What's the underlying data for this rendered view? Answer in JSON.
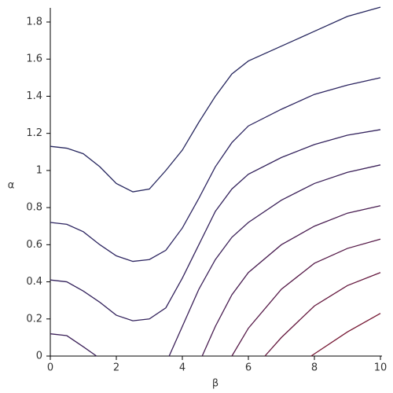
{
  "chart_data": {
    "type": "line",
    "xlabel": "β",
    "ylabel": "α",
    "xlim": [
      0,
      10
    ],
    "ylim": [
      0,
      1.8
    ],
    "xticks": [
      0,
      2,
      4,
      6,
      8,
      10
    ],
    "yticks": [
      0,
      0.2,
      0.4,
      0.6,
      0.8,
      1,
      1.2,
      1.4,
      1.6,
      1.8
    ],
    "series": [
      {
        "color": "#26265e",
        "x": [
          0,
          0.5,
          1,
          1.5,
          2,
          2.5,
          3,
          3.5,
          4,
          4.5,
          5,
          5.5,
          6,
          7,
          8,
          9,
          10
        ],
        "values": [
          1.13,
          1.12,
          1.09,
          1.02,
          0.93,
          0.885,
          0.9,
          1.0,
          1.11,
          1.26,
          1.4,
          1.52,
          1.59,
          1.67,
          1.75,
          1.83,
          1.88
        ]
      },
      {
        "color": "#2c2460",
        "x": [
          0,
          0.5,
          1,
          1.5,
          2,
          2.5,
          3,
          3.5,
          4,
          4.5,
          5,
          5.5,
          6,
          7,
          8,
          9,
          10
        ],
        "values": [
          0.72,
          0.71,
          0.67,
          0.6,
          0.54,
          0.51,
          0.52,
          0.57,
          0.69,
          0.85,
          1.02,
          1.15,
          1.24,
          1.33,
          1.41,
          1.46,
          1.5
        ]
      },
      {
        "color": "#33225c",
        "x": [
          0,
          0.5,
          1,
          1.5,
          2,
          2.5,
          3,
          3.5,
          4,
          4.5,
          5,
          5.5,
          6,
          7,
          8,
          9,
          10
        ],
        "values": [
          0.41,
          0.4,
          0.35,
          0.29,
          0.22,
          0.19,
          0.2,
          0.26,
          0.42,
          0.6,
          0.78,
          0.9,
          0.98,
          1.07,
          1.14,
          1.19,
          1.22
        ]
      },
      {
        "color": "#3b2058",
        "x": [
          0,
          0.5,
          1,
          1.4
        ],
        "values": [
          0.12,
          0.11,
          0.05,
          0
        ]
      },
      {
        "color": "#3b2058",
        "x": [
          3.6,
          4,
          4.5,
          5,
          5.5,
          6,
          7,
          8,
          9,
          10
        ],
        "values": [
          0,
          0.16,
          0.36,
          0.52,
          0.64,
          0.72,
          0.84,
          0.93,
          0.99,
          1.03
        ]
      },
      {
        "color": "#481c50",
        "x": [
          4.6,
          5,
          5.5,
          6,
          7,
          8,
          9,
          10
        ],
        "values": [
          0,
          0.16,
          0.33,
          0.45,
          0.6,
          0.7,
          0.77,
          0.81
        ]
      },
      {
        "color": "#561a48",
        "x": [
          5.5,
          6,
          7,
          8,
          9,
          10
        ],
        "values": [
          0,
          0.15,
          0.36,
          0.5,
          0.58,
          0.63
        ]
      },
      {
        "color": "#65183e",
        "x": [
          6.5,
          7,
          8,
          9,
          10
        ],
        "values": [
          0,
          0.1,
          0.27,
          0.38,
          0.45
        ]
      },
      {
        "color": "#751632",
        "x": [
          7.9,
          9,
          10
        ],
        "values": [
          0,
          0.13,
          0.23
        ]
      }
    ]
  }
}
